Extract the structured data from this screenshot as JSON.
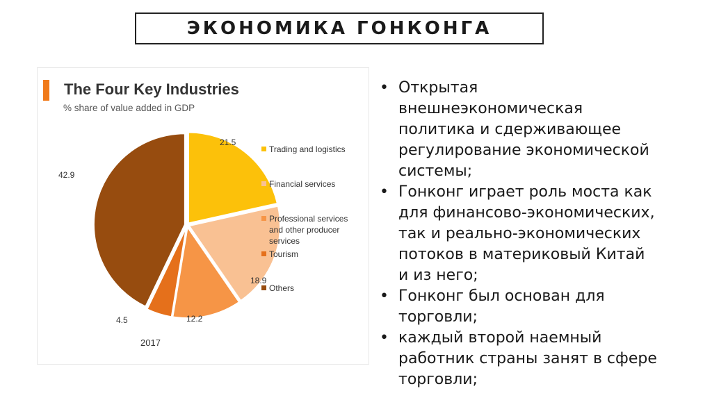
{
  "slide": {
    "title": "ЭКОНОМИКА ГОНКОНГА"
  },
  "chart_data": {
    "type": "pie",
    "title": "The Four Key Industries",
    "subtitle": "% share of value added in GDP",
    "year_label": "2017",
    "legend_position": "right",
    "slices": [
      {
        "label": "Trading and logistics",
        "legend_lines": [
          "Trading and logistics"
        ],
        "value": 21.5,
        "value_label": "21.5",
        "color": "#fcc10a"
      },
      {
        "label": "Financial services",
        "legend_lines": [
          "Financial services"
        ],
        "value": 18.9,
        "value_label": "18.9",
        "color": "#f9c193"
      },
      {
        "label": "Professional services and other producer services",
        "legend_lines": [
          "Professional services",
          "and other producer",
          "services"
        ],
        "value": 12.2,
        "value_label": "12.2",
        "color": "#f69546"
      },
      {
        "label": "Tourism",
        "legend_lines": [
          "Tourism"
        ],
        "value": 4.5,
        "value_label": "4.5",
        "color": "#e5701b"
      },
      {
        "label": "Others",
        "legend_lines": [
          "Others"
        ],
        "value": 42.9,
        "value_label": "42.9",
        "color": "#974c0f"
      }
    ]
  },
  "bullets": [
    [
      "Открытая",
      "внешнеэкономическая",
      "политика и сдерживающее",
      "регулирование экономической",
      "системы;"
    ],
    [
      "Гонконг играет роль моста как",
      "для финансово-экономических,",
      "так и реально-экономических",
      "потоков в материковый Китай",
      "и из него;"
    ],
    [
      "Гонконг был основан для",
      "торговли;"
    ],
    [
      "каждый второй наемный",
      "работник страны занят в сфере",
      "торговли;"
    ]
  ]
}
